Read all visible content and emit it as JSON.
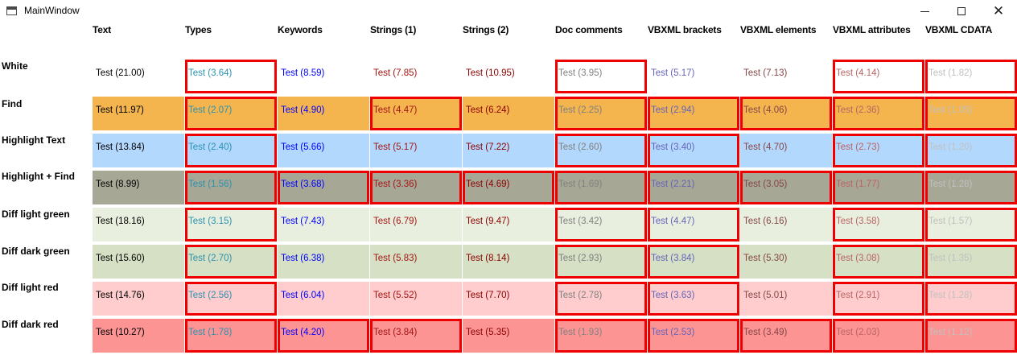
{
  "window": {
    "title": "MainWindow"
  },
  "columns": [
    {
      "label": "Text",
      "color": "#000000"
    },
    {
      "label": "Types",
      "color": "#2b91af"
    },
    {
      "label": "Keywords",
      "color": "#0000ff"
    },
    {
      "label": "Strings (1)",
      "color": "#a31515"
    },
    {
      "label": "Strings (2)",
      "color": "#8b0000"
    },
    {
      "label": "Doc comments",
      "color": "#808080"
    },
    {
      "label": "VBXML brackets",
      "color": "#6464b9"
    },
    {
      "label": "VBXML elements",
      "color": "#844646"
    },
    {
      "label": "VBXML attributes",
      "color": "#b96464"
    },
    {
      "label": "VBXML CDATA",
      "color": "#c0c0c0"
    }
  ],
  "rows": [
    {
      "label": "White",
      "background": "#ffffff",
      "cells": [
        "Test (21.00)",
        "Test (3.64)",
        "Test (8.59)",
        "Test (7.85)",
        "Test (10.95)",
        "Test (3.95)",
        "Test (5.17)",
        "Test (7.13)",
        "Test (4.14)",
        "Test (1.82)"
      ],
      "outlined": [
        false,
        true,
        false,
        false,
        false,
        true,
        false,
        false,
        true,
        true
      ]
    },
    {
      "label": "Find",
      "background": "#f4b54e",
      "cells": [
        "Test (11.97)",
        "Test (2.07)",
        "Test (4.90)",
        "Test (4.47)",
        "Test (6.24)",
        "Test (2.25)",
        "Test (2.94)",
        "Test (4.06)",
        "Test (2.36)",
        "Test (1.05)"
      ],
      "outlined": [
        false,
        true,
        false,
        true,
        false,
        true,
        true,
        true,
        true,
        true
      ]
    },
    {
      "label": "Highlight Text",
      "background": "#b3d8fd",
      "cells": [
        "Test (13.84)",
        "Test (2.40)",
        "Test (5.66)",
        "Test (5.17)",
        "Test (7.22)",
        "Test (2.60)",
        "Test (3.40)",
        "Test (4.70)",
        "Test (2.73)",
        "Test (1.20)"
      ],
      "outlined": [
        false,
        true,
        false,
        false,
        false,
        true,
        true,
        false,
        true,
        true
      ]
    },
    {
      "label": "Highlight + Find",
      "background": "#a7a796",
      "cells": [
        "Test (8.99)",
        "Test (1.56)",
        "Test (3.68)",
        "Test (3.36)",
        "Test (4.69)",
        "Test (1.69)",
        "Test (2.21)",
        "Test (3.05)",
        "Test (1.77)",
        "Test (1.28)"
      ],
      "outlined": [
        false,
        true,
        true,
        true,
        true,
        true,
        true,
        true,
        true,
        true
      ]
    },
    {
      "label": "Diff light green",
      "background": "#e9efdf",
      "cells": [
        "Test (18.16)",
        "Test (3.15)",
        "Test (7.43)",
        "Test (6.79)",
        "Test (9.47)",
        "Test (3.42)",
        "Test (4.47)",
        "Test (6.16)",
        "Test (3.58)",
        "Test (1.57)"
      ],
      "outlined": [
        false,
        true,
        false,
        false,
        false,
        true,
        true,
        false,
        true,
        true
      ]
    },
    {
      "label": "Diff dark green",
      "background": "#d6e0c4",
      "cells": [
        "Test (15.60)",
        "Test (2.70)",
        "Test (6.38)",
        "Test (5.83)",
        "Test (8.14)",
        "Test (2.93)",
        "Test (3.84)",
        "Test (5.30)",
        "Test (3.08)",
        "Test (1.35)"
      ],
      "outlined": [
        false,
        true,
        false,
        false,
        false,
        true,
        true,
        false,
        true,
        true
      ]
    },
    {
      "label": "Diff light red",
      "background": "#ffcdcd",
      "cells": [
        "Test (14.76)",
        "Test (2.56)",
        "Test (6.04)",
        "Test (5.52)",
        "Test (7.70)",
        "Test (2.78)",
        "Test (3.63)",
        "Test (5.01)",
        "Test (2.91)",
        "Test (1.28)"
      ],
      "outlined": [
        false,
        true,
        false,
        false,
        false,
        true,
        true,
        false,
        true,
        true
      ]
    },
    {
      "label": "Diff dark red",
      "background": "#fd9494",
      "cells": [
        "Test (10.27)",
        "Test (1.78)",
        "Test (4.20)",
        "Test (3.84)",
        "Test (5.35)",
        "Test (1.93)",
        "Test (2.53)",
        "Test (3.49)",
        "Test (2.03)",
        "Test (1.12)"
      ],
      "outlined": [
        false,
        true,
        true,
        true,
        false,
        true,
        true,
        true,
        true,
        true
      ]
    }
  ]
}
